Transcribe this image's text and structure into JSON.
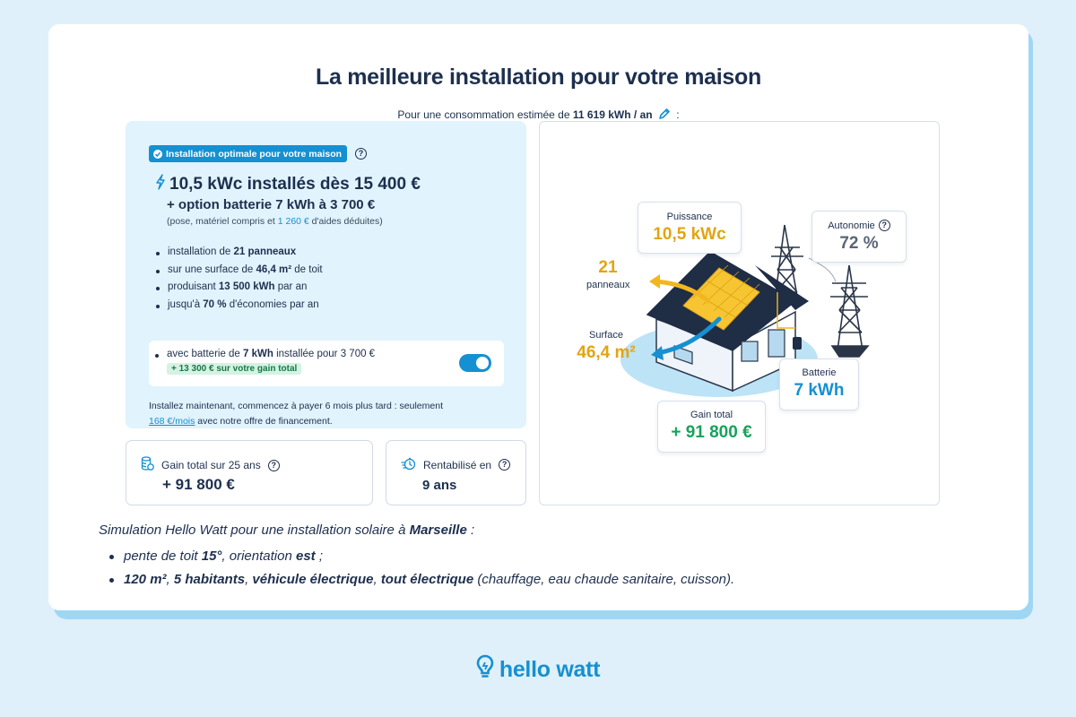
{
  "header": {
    "title": "La meilleure installation pour votre maison",
    "conso_prefix": "Pour une consommation estimée de ",
    "conso_value": "11 619 kWh / an",
    "conso_suffix": " :"
  },
  "offer": {
    "badge": "Installation optimale pour votre maison",
    "headline": "10,5 kWc installés dès 15 400 €",
    "battery_option": "+ option batterie 7 kWh à 3 700 €",
    "aid_prefix": "(pose, matériel compris et ",
    "aid_value": "1 260 €",
    "aid_suffix": " d'aides déduites)",
    "bullets": [
      {
        "pre": "installation de ",
        "bold": "21 panneaux",
        "post": ""
      },
      {
        "pre": "sur une surface de ",
        "bold": "46,4 m²",
        "post": " de toit"
      },
      {
        "pre": "produisant ",
        "bold": "13 500 kWh",
        "post": " par an"
      },
      {
        "pre": "jusqu'à ",
        "bold": "70 %",
        "post": " d'économies par an"
      }
    ],
    "battery_row": {
      "pre": "avec batterie de ",
      "bold": "7 kWh",
      "post": " installée pour 3 700 €",
      "gain": "+ 13 300 € sur votre gain total",
      "toggle_on": true
    },
    "finance_text": "Installez maintenant, commencez à payer 6 mois plus tard : seulement",
    "finance_link": "168 €/mois",
    "finance_suffix": " avec notre offre de financement."
  },
  "stats": {
    "gain_label": "Gain total sur 25 ans",
    "gain_value": "+ 91 800 €",
    "roi_label": "Rentabilisé en",
    "roi_value": "9 ans"
  },
  "illustration": {
    "puissance_label": "Puissance",
    "puissance_value": "10,5 kWc",
    "autonomie_label": "Autonomie",
    "autonomie_value": "72 %",
    "panneaux_value": "21",
    "panneaux_label": "panneaux",
    "surface_label": "Surface",
    "surface_value": "46,4 m²",
    "batterie_label": "Batterie",
    "batterie_value": "7 kWh",
    "gain_label": "Gain total",
    "gain_value": "+ 91 800 €"
  },
  "footnote": {
    "intro_pre": "Simulation Hello Watt pour une installation solaire à ",
    "intro_city": "Marseille",
    "intro_post": " :",
    "line1": [
      {
        "t": "pente de toit ",
        "b": false
      },
      {
        "t": "15°",
        "b": true
      },
      {
        "t": ", orientation ",
        "b": false
      },
      {
        "t": "est",
        "b": true
      },
      {
        "t": " ;",
        "b": false
      }
    ],
    "line2": [
      {
        "t": "120 m²",
        "b": true
      },
      {
        "t": ", ",
        "b": false
      },
      {
        "t": "5 habitants",
        "b": true
      },
      {
        "t": ", ",
        "b": false
      },
      {
        "t": "véhicule électrique",
        "b": true
      },
      {
        "t": ", ",
        "b": false
      },
      {
        "t": "tout électrique",
        "b": true
      },
      {
        "t": " (chauffage, eau chaude sanitaire, cuisson).",
        "b": false
      }
    ]
  },
  "brand": {
    "name": "hello watt"
  },
  "colors": {
    "accent_blue": "#1590d2",
    "navy": "#1d2f4e",
    "yellow": "#e2a412",
    "green": "#16a35a",
    "page_bg": "#dff0fa"
  },
  "icons": [
    "info-check-icon",
    "help-icon",
    "lightning-icon",
    "pencil-icon",
    "coins-icon",
    "speed-clock-icon",
    "bulb-logo-icon"
  ]
}
